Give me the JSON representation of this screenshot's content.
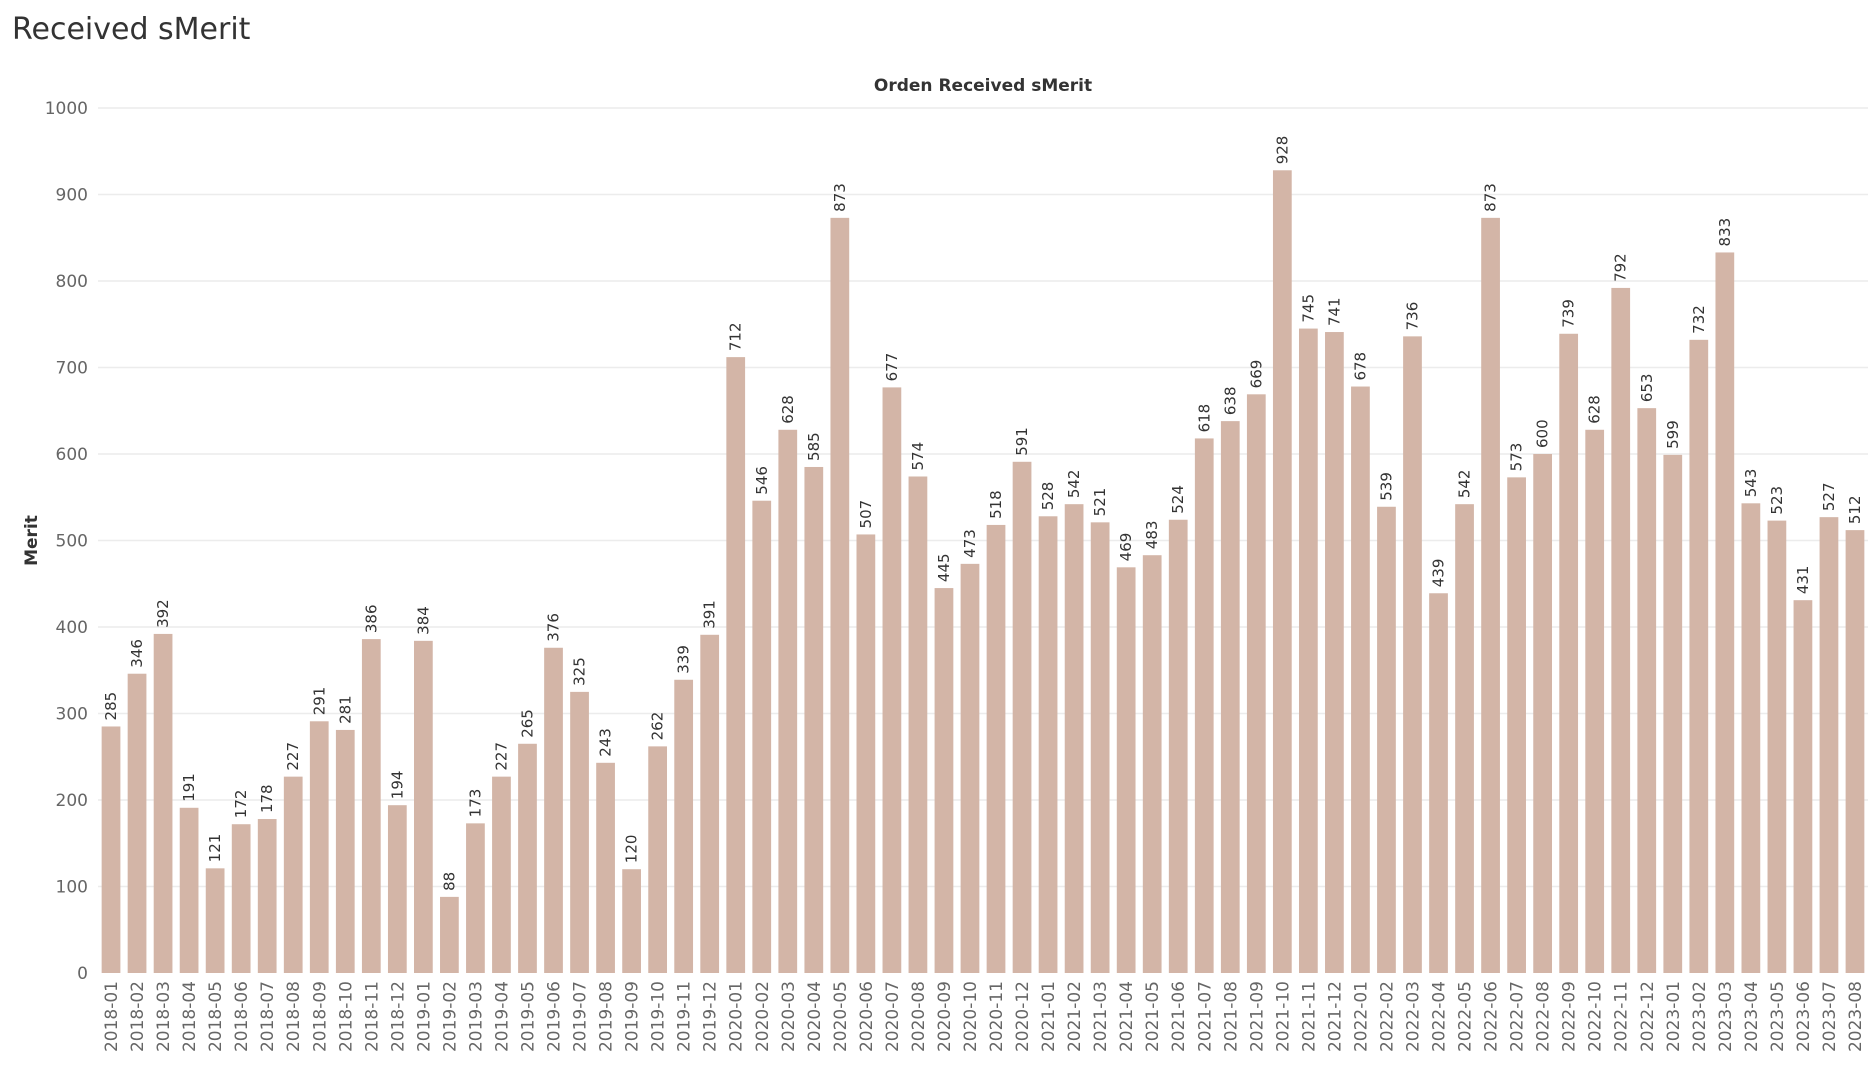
{
  "page": {
    "title": "Received sMerit"
  },
  "colors": {
    "bar": "#d3b5a7",
    "grid": "#ececec",
    "text": "#333333",
    "tick": "#666666"
  },
  "chart_data": {
    "type": "bar",
    "title": "Orden Received sMerit",
    "xlabel": "",
    "ylabel": "Merit",
    "ylim": [
      0,
      1000
    ],
    "yticks": [
      0,
      100,
      200,
      300,
      400,
      500,
      600,
      700,
      800,
      900,
      1000
    ],
    "grid": true,
    "categories": [
      "2018-01",
      "2018-02",
      "2018-03",
      "2018-04",
      "2018-05",
      "2018-06",
      "2018-07",
      "2018-08",
      "2018-09",
      "2018-10",
      "2018-11",
      "2018-12",
      "2019-01",
      "2019-02",
      "2019-03",
      "2019-04",
      "2019-05",
      "2019-06",
      "2019-07",
      "2019-08",
      "2019-09",
      "2019-10",
      "2019-11",
      "2019-12",
      "2020-01",
      "2020-02",
      "2020-03",
      "2020-04",
      "2020-05",
      "2020-06",
      "2020-07",
      "2020-08",
      "2020-09",
      "2020-10",
      "2020-11",
      "2020-12",
      "2021-01",
      "2021-02",
      "2021-03",
      "2021-04",
      "2021-05",
      "2021-06",
      "2021-07",
      "2021-08",
      "2021-09",
      "2021-10",
      "2021-11",
      "2021-12",
      "2022-01",
      "2022-02",
      "2022-03",
      "2022-04",
      "2022-05",
      "2022-06",
      "2022-07",
      "2022-08",
      "2022-09",
      "2022-10",
      "2022-11",
      "2022-12",
      "2023-01",
      "2023-02",
      "2023-03",
      "2023-04",
      "2023-05",
      "2023-06",
      "2023-07",
      "2023-08"
    ],
    "values": [
      285,
      346,
      392,
      191,
      121,
      172,
      178,
      227,
      291,
      281,
      386,
      194,
      384,
      88,
      173,
      227,
      265,
      376,
      325,
      243,
      120,
      262,
      339,
      391,
      712,
      546,
      628,
      585,
      873,
      507,
      677,
      574,
      445,
      473,
      518,
      591,
      528,
      542,
      521,
      469,
      483,
      524,
      618,
      638,
      669,
      928,
      745,
      741,
      678,
      539,
      736,
      439,
      542,
      873,
      573,
      600,
      739,
      628,
      792,
      653,
      599,
      732,
      833,
      543,
      523,
      431,
      527,
      512
    ]
  }
}
